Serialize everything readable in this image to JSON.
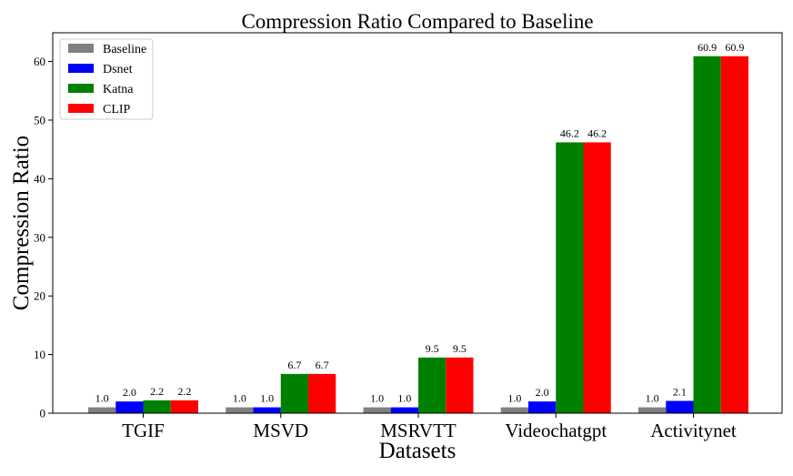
{
  "chart_data": {
    "type": "bar",
    "title": "Compression Ratio Compared to Baseline",
    "xlabel": "Datasets",
    "ylabel": "Compression Ratio",
    "categories": [
      "TGIF",
      "MSVD",
      "MSRVTT",
      "Videochatgpt",
      "Activitynet"
    ],
    "series": [
      {
        "name": "Baseline",
        "color": "#808080",
        "values": [
          1.0,
          1.0,
          1.0,
          1.0,
          1.0
        ],
        "labels": [
          "1.0",
          "1.0",
          "1.0",
          "1.0",
          "1.0"
        ]
      },
      {
        "name": "Dsnet",
        "color": "#0000ff",
        "values": [
          2.0,
          1.0,
          1.0,
          2.0,
          2.1
        ],
        "labels": [
          "2.0",
          "1.0",
          "1.0",
          "2.0",
          "2.1"
        ]
      },
      {
        "name": "Katna",
        "color": "#008000",
        "values": [
          2.2,
          6.7,
          9.5,
          46.2,
          60.9
        ],
        "labels": [
          "2.2",
          "6.7",
          "9.5",
          "46.2",
          "60.9"
        ]
      },
      {
        "name": "CLIP",
        "color": "#ff0000",
        "values": [
          2.2,
          6.7,
          9.5,
          46.2,
          60.9
        ],
        "labels": [
          "2.2",
          "6.7",
          "9.5",
          "46.2",
          "60.9"
        ]
      }
    ],
    "ylim": [
      0,
      64.9
    ],
    "yticks": [
      0,
      10,
      20,
      30,
      40,
      50,
      60
    ],
    "ytick_labels": [
      "0",
      "10",
      "20",
      "30",
      "40",
      "50",
      "60"
    ],
    "grid": false,
    "legend": "top-left"
  }
}
